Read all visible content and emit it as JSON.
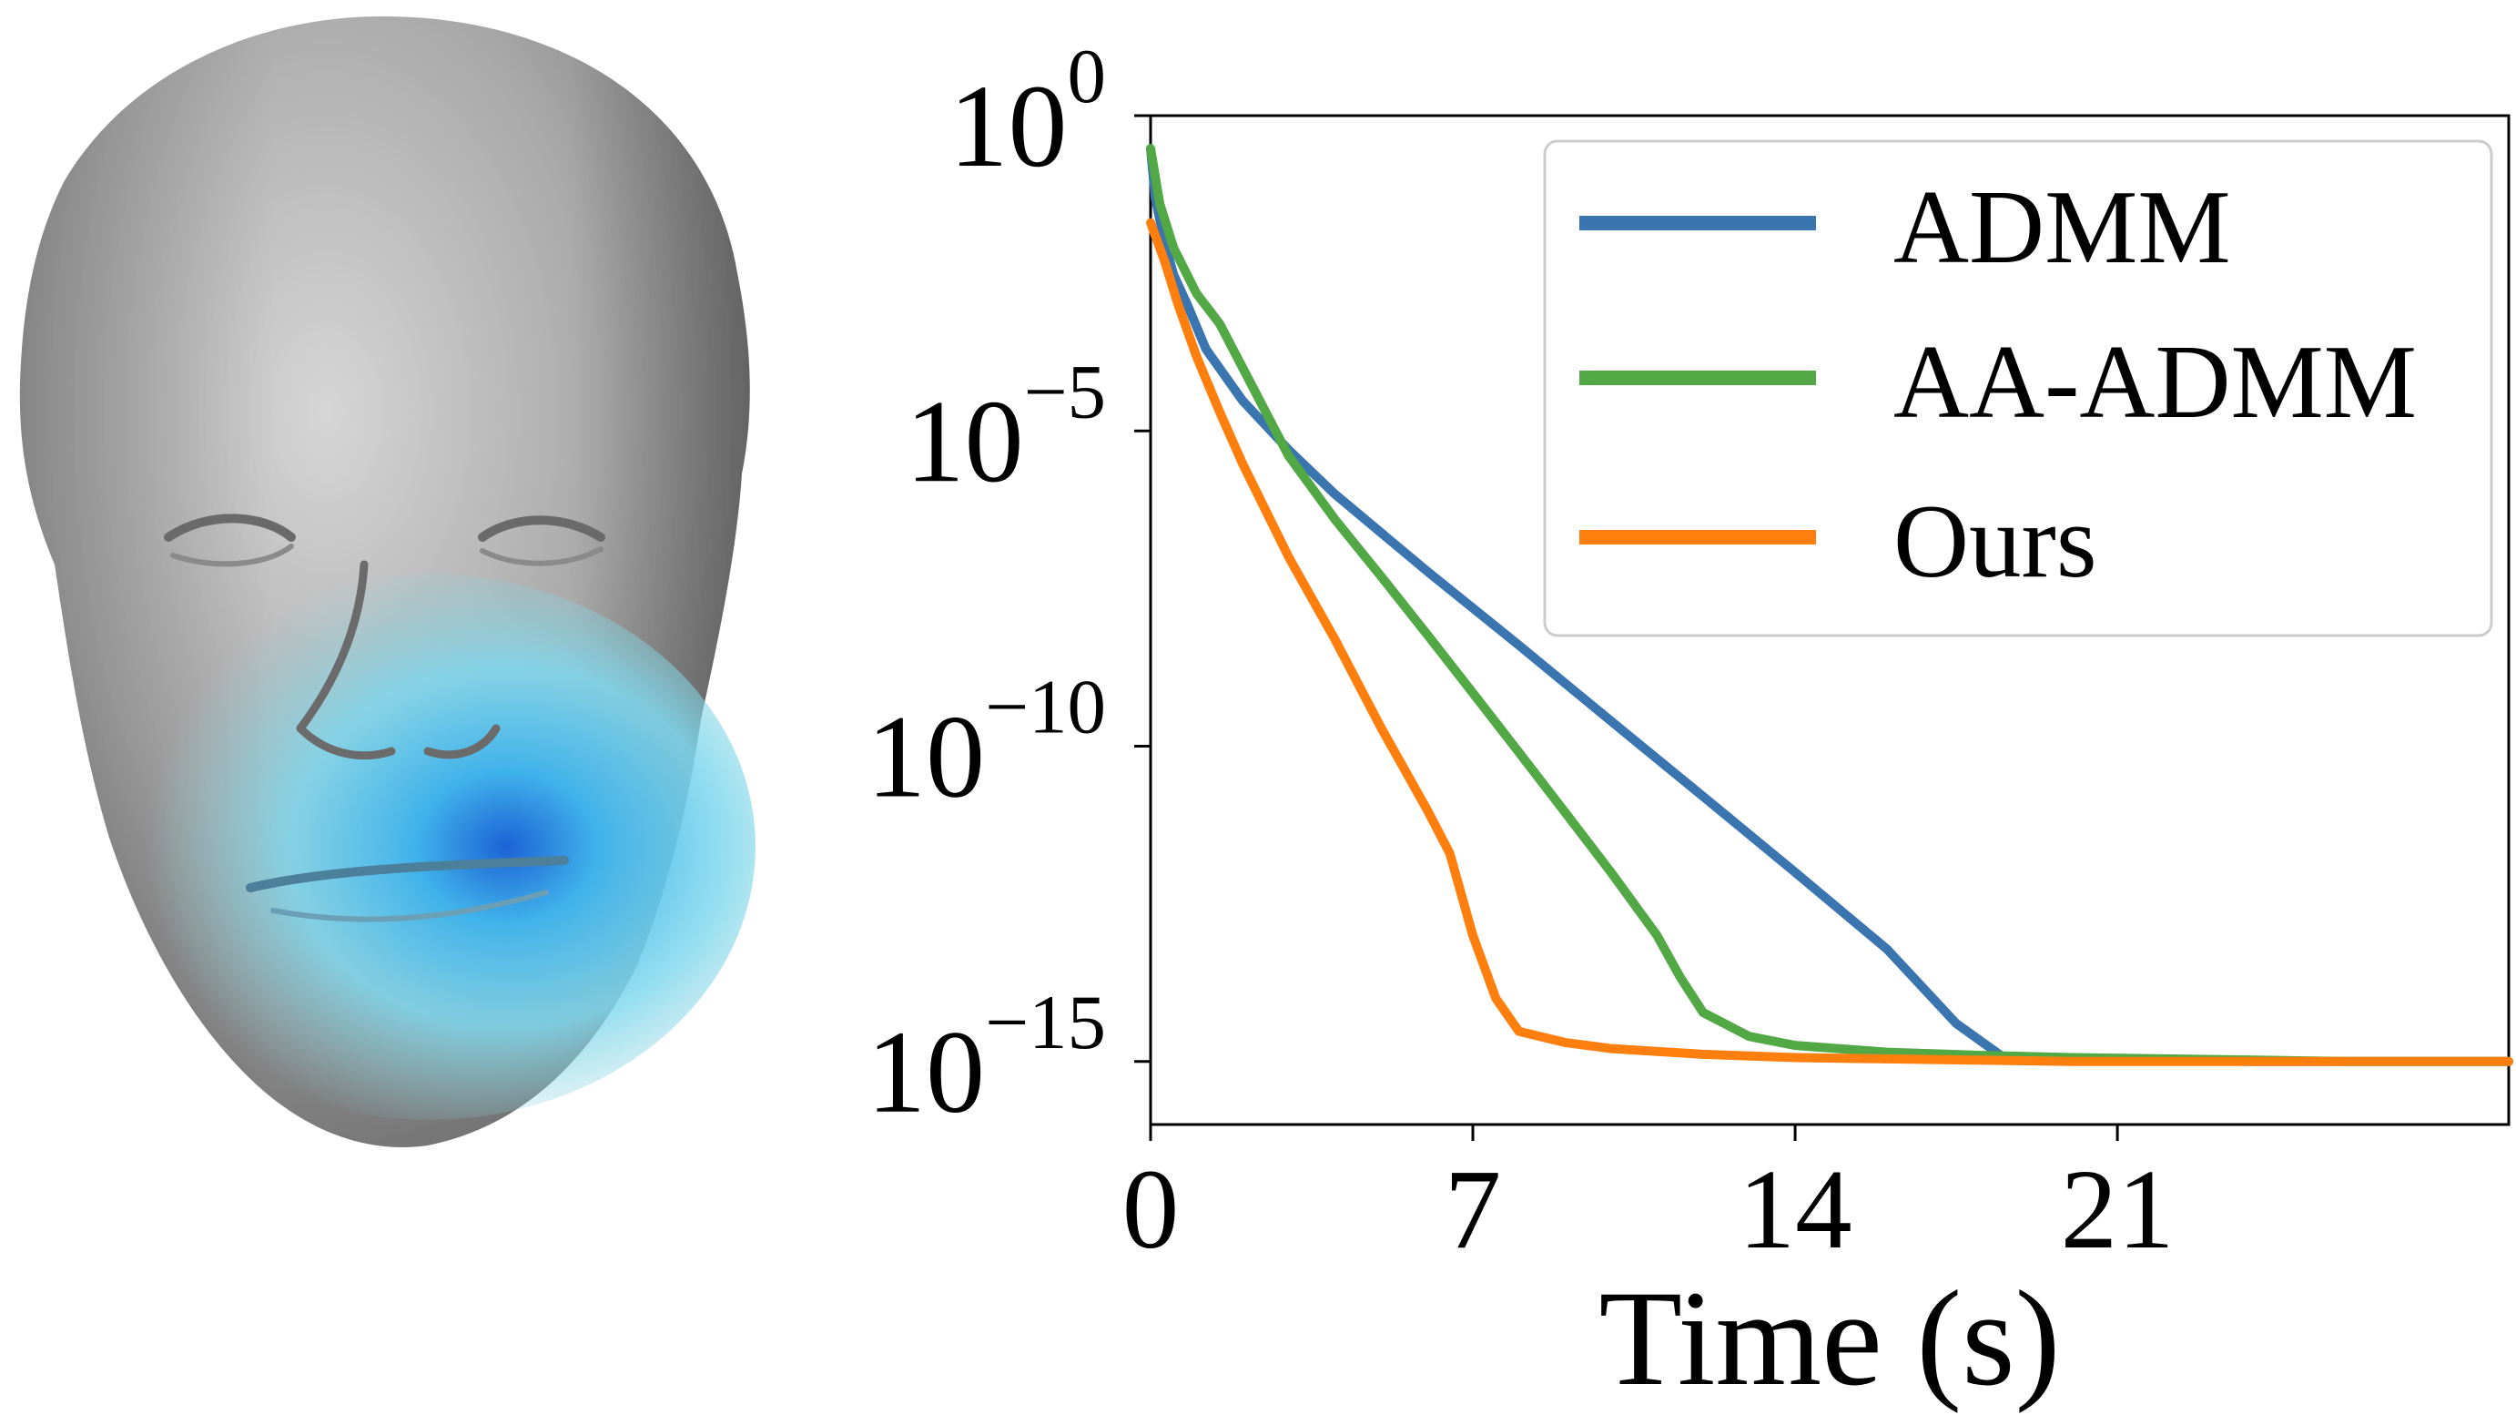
{
  "figure": {
    "left_panel": "face-mesh",
    "right_panel": "convergence-plot"
  },
  "chart_data": {
    "type": "line",
    "title": "",
    "xlabel": "Time (s)",
    "ylabel": "",
    "xlim": [
      0,
      29.5
    ],
    "x_ticks": [
      0,
      7,
      14,
      21
    ],
    "x_tick_labels": [
      "0",
      "7",
      "14",
      "21"
    ],
    "yscale": "log",
    "ylim": [
      1e-16,
      1.0
    ],
    "y_ticks": [
      1.0,
      1e-05,
      1e-10,
      1e-15
    ],
    "y_tick_labels": [
      {
        "base": "10",
        "exp": "0"
      },
      {
        "base": "10",
        "exp": "−5"
      },
      {
        "base": "10",
        "exp": "−10"
      },
      {
        "base": "10",
        "exp": "−15"
      }
    ],
    "grid": false,
    "legend_position": "top-right",
    "series": [
      {
        "name": "ADMM",
        "color": "#3b75af",
        "x": [
          0,
          0.1,
          0.3,
          0.5,
          0.8,
          1.2,
          2,
          3,
          4,
          6,
          8,
          10,
          12,
          14,
          16,
          17.5,
          18.5,
          20,
          22,
          24,
          26,
          28,
          29.5
        ],
        "y": [
          0.3,
          0.05,
          0.01,
          0.003,
          0.001,
          0.0002,
          3e-05,
          5e-06,
          1e-06,
          6e-08,
          4e-09,
          2.5e-10,
          1.6e-11,
          1e-12,
          6e-14,
          4e-15,
          1.2e-15,
          1.1e-15,
          1.05e-15,
          1e-15,
          1e-15,
          1e-15,
          1e-15
        ]
      },
      {
        "name": "AA-ADMM",
        "color": "#51a845",
        "x": [
          0,
          0.2,
          0.5,
          1,
          1.5,
          2,
          2.5,
          3,
          4,
          5,
          6,
          7,
          8,
          9,
          10,
          11,
          11.5,
          12,
          13,
          14,
          16,
          18,
          20,
          22,
          24,
          26,
          28,
          29.5
        ],
        "y": [
          0.3,
          0.04,
          0.008,
          0.0015,
          0.0005,
          0.0001,
          2e-05,
          4e-06,
          4e-07,
          5e-08,
          6e-09,
          7e-10,
          8e-11,
          9e-12,
          1e-12,
          1e-13,
          2.2e-14,
          6e-15,
          2.5e-15,
          1.8e-15,
          1.4e-15,
          1.25e-15,
          1.15e-15,
          1.1e-15,
          1.05e-15,
          1e-15,
          1e-15,
          1e-15
        ]
      },
      {
        "name": "Ours",
        "color": "#ff7f0e",
        "x": [
          0,
          0.3,
          0.6,
          1,
          1.5,
          2,
          3,
          4,
          5,
          6,
          6.5,
          7,
          7.5,
          8,
          9,
          10,
          12,
          14,
          16,
          18,
          20,
          22,
          24,
          26,
          28,
          29.5
        ],
        "y": [
          0.02,
          0.005,
          0.001,
          0.00015,
          2e-05,
          3e-06,
          1e-07,
          5e-09,
          2e-10,
          1e-11,
          2e-12,
          1e-13,
          1e-14,
          3e-15,
          2e-15,
          1.6e-15,
          1.3e-15,
          1.15e-15,
          1.1e-15,
          1.05e-15,
          1e-15,
          1e-15,
          1e-15,
          1e-15,
          1e-15,
          1e-15
        ]
      }
    ]
  }
}
